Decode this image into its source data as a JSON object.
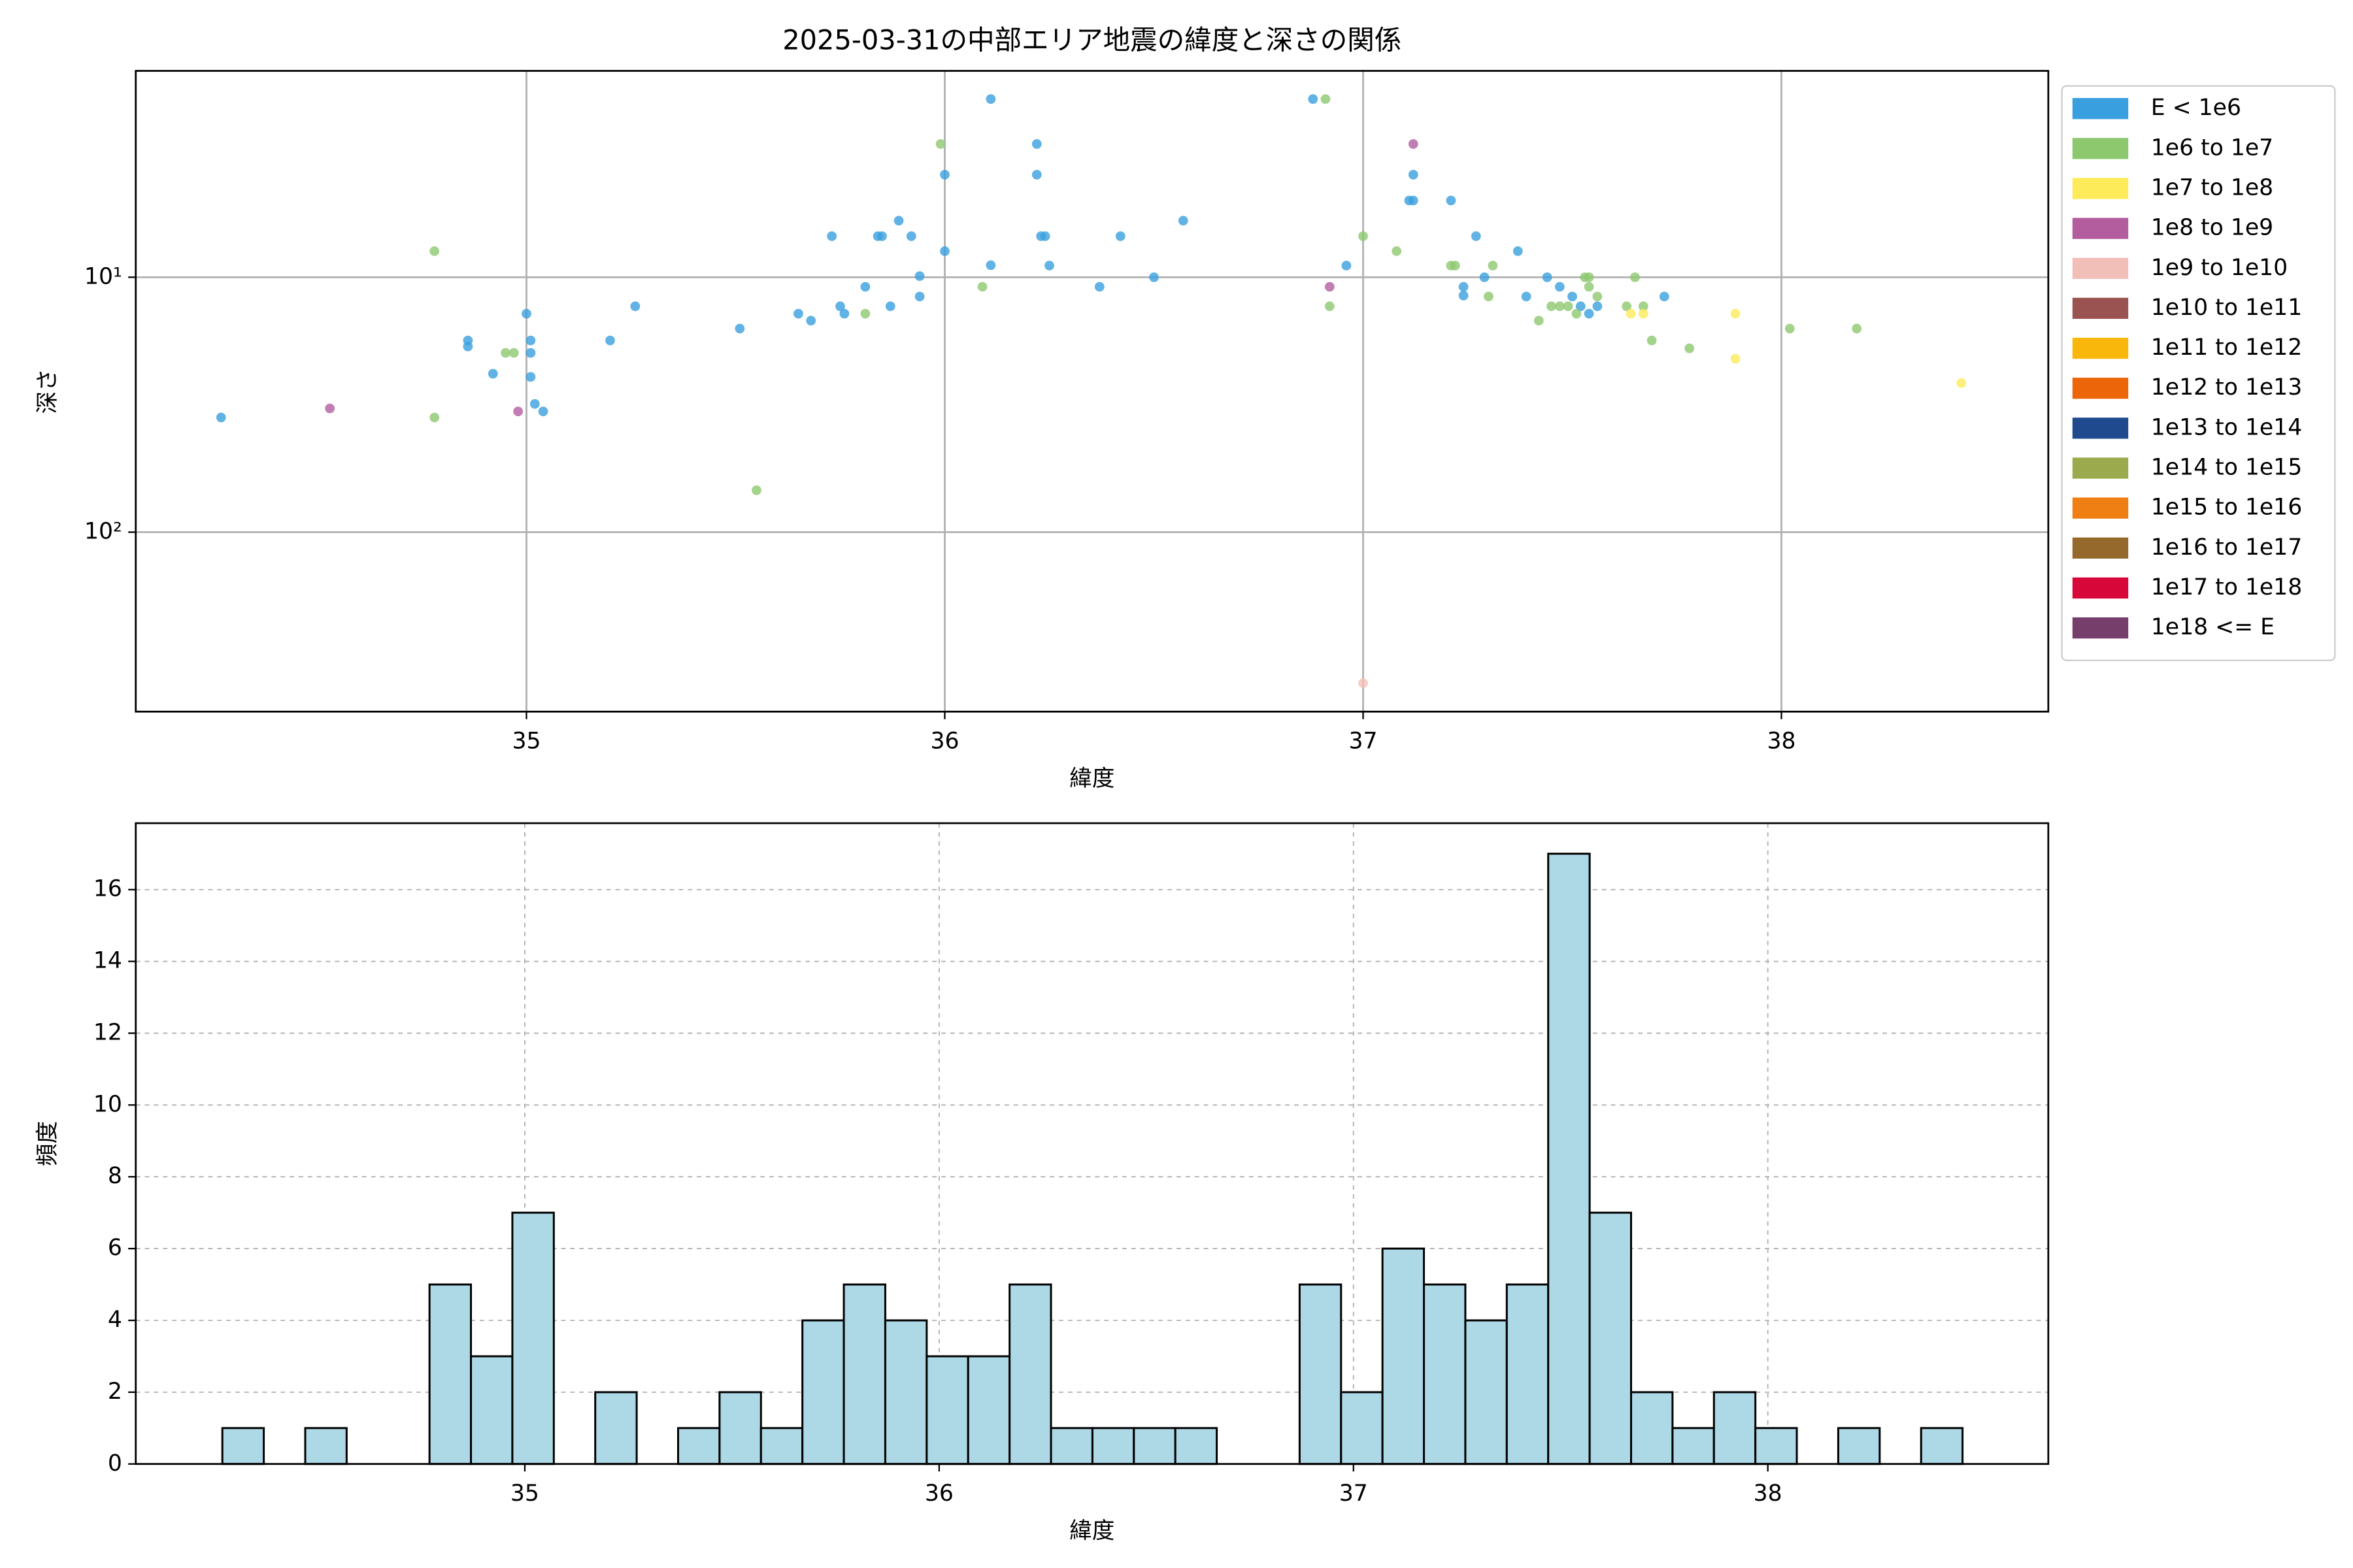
{
  "chart_data": [
    {
      "type": "scatter",
      "title": "2025-03-31の中部エリア地震の緯度と深さの関係",
      "x_label": "緯度",
      "y_label": "深さ",
      "xlim": [
        34.066,
        38.638
      ],
      "xticks": [
        35,
        36,
        37,
        38
      ],
      "ylim": [
        506,
        1.55
      ],
      "y_log": true,
      "yticks": [
        {
          "value": 10,
          "label": "10¹"
        },
        {
          "value": 100,
          "label": "10²"
        }
      ],
      "grid": true,
      "legend": "outside-right",
      "series": [
        {
          "name": "E < 1e6",
          "color": "#3a9fdf",
          "x": [
            34.27,
            34.86,
            34.86,
            34.92,
            35.0,
            35.01,
            35.01,
            35.01,
            35.02,
            35.04,
            35.2,
            35.26,
            35.51,
            35.65,
            35.68,
            35.75,
            35.76,
            35.73,
            35.81,
            35.84,
            35.85,
            35.87,
            35.89,
            35.92,
            35.94,
            35.94,
            36.0,
            36.0,
            36.11,
            36.11,
            36.22,
            36.22,
            36.23,
            36.24,
            36.25,
            36.37,
            36.42,
            36.5,
            36.57,
            36.88,
            36.96,
            37.11,
            37.12,
            37.12,
            37.21,
            37.24,
            37.24,
            37.27,
            37.29,
            37.37,
            37.39,
            37.44,
            37.47,
            37.5,
            37.52,
            37.54,
            37.56,
            37.72
          ],
          "values": [
            35.5,
            17.7,
            18.7,
            23.9,
            13.9,
            17.7,
            19.8,
            24.6,
            31.4,
            33.6,
            17.7,
            13.0,
            15.9,
            13.9,
            14.8,
            13.0,
            13.9,
            6.9,
            10.9,
            6.9,
            6.9,
            13.0,
            6.0,
            6.9,
            9.9,
            11.9,
            7.9,
            3.96,
            2.0,
            8.97,
            3.0,
            3.96,
            6.9,
            6.9,
            9.0,
            10.9,
            6.9,
            10,
            6.0,
            2.0,
            9.0,
            5.0,
            5.0,
            3.96,
            5.0,
            10.9,
            11.8,
            6.9,
            10,
            7.9,
            11.9,
            10,
            10.9,
            11.9,
            13.0,
            13.9,
            13.0,
            11.9
          ]
        },
        {
          "name": "1e6 to 1e7",
          "color": "#8dc86f",
          "x": [
            34.78,
            34.78,
            34.95,
            34.97,
            35.55,
            35.81,
            35.99,
            36.09,
            36.91,
            36.92,
            37.0,
            37.08,
            37.21,
            37.22,
            37.3,
            37.31,
            37.42,
            37.45,
            37.47,
            37.49,
            37.51,
            37.53,
            37.54,
            37.54,
            37.56,
            37.63,
            37.65,
            37.67,
            37.69,
            37.78,
            38.02,
            38.18
          ],
          "values": [
            7.9,
            35.5,
            19.8,
            19.8,
            68.5,
            13.9,
            3.0,
            10.9,
            2.0,
            13.0,
            6.9,
            7.9,
            9.0,
            9.0,
            11.9,
            9.0,
            14.8,
            13.0,
            13.0,
            13.0,
            13.9,
            10,
            10,
            10.9,
            11.9,
            13.0,
            10,
            13,
            17.7,
            19.0,
            15.9,
            15.9
          ]
        },
        {
          "name": "1e7 to 1e8",
          "color": "#fdeb5a",
          "x": [
            37.64,
            37.67,
            37.89,
            37.89,
            38.43
          ],
          "values": [
            13.9,
            13.9,
            13.9,
            20.9,
            26
          ]
        },
        {
          "name": "1e8 to 1e9",
          "color": "#b35d9f",
          "x": [
            34.53,
            34.98,
            36.92,
            37.12
          ],
          "values": [
            32.7,
            33.6,
            10.9,
            3.0
          ]
        },
        {
          "name": "1e9 to 1e10",
          "color": "#f2bfb8",
          "x": [
            37.0
          ],
          "values": [
            391
          ]
        },
        {
          "name": "1e10 to 1e11",
          "color": "#9a5350",
          "x": [],
          "values": []
        },
        {
          "name": "1e11 to 1e12",
          "color": "#f9b70b",
          "x": [],
          "values": []
        },
        {
          "name": "1e12 to 1e13",
          "color": "#ec6509",
          "x": [],
          "values": []
        },
        {
          "name": "1e13 to 1e14",
          "color": "#1f4a8d",
          "x": [],
          "values": []
        },
        {
          "name": "1e14 to 1e15",
          "color": "#9baa4d",
          "x": [],
          "values": []
        },
        {
          "name": "1e15 to 1e16",
          "color": "#ef7e13",
          "x": [],
          "values": []
        },
        {
          "name": "1e16 to 1e17",
          "color": "#95692c",
          "x": [],
          "values": []
        },
        {
          "name": "1e17 to 1e18",
          "color": "#d7073a",
          "x": [],
          "values": []
        },
        {
          "name": "1e18 <= E",
          "color": "#753e6b",
          "x": [],
          "values": []
        }
      ]
    },
    {
      "type": "histogram",
      "x_label": "緯度",
      "y_label": "頻度",
      "xlim": [
        34.061,
        38.677
      ],
      "xticks": [
        35,
        36,
        37,
        38
      ],
      "ylim": [
        0,
        17.85
      ],
      "yticks": [
        0,
        2,
        4,
        6,
        8,
        10,
        12,
        14,
        16
      ],
      "grid": true,
      "color": "#add8e6",
      "edgecolor": "#000000",
      "bins": [
        34.27,
        34.37,
        34.47,
        34.57,
        34.67,
        34.77,
        34.87,
        34.97,
        35.07,
        35.17,
        35.27,
        35.37,
        35.47,
        35.57,
        35.67,
        35.77,
        35.87,
        35.97,
        36.07,
        36.17,
        36.27,
        36.37,
        36.47,
        36.57,
        36.67,
        36.77,
        36.87,
        36.97,
        37.07,
        37.17,
        37.27,
        37.37,
        37.47,
        37.57,
        37.67,
        37.77,
        37.87,
        37.97,
        38.07,
        38.17,
        38.27,
        38.37,
        38.47
      ],
      "values": [
        1,
        0,
        1,
        0,
        0,
        5,
        3,
        7,
        0,
        2,
        0,
        1,
        2,
        1,
        4,
        5,
        4,
        3,
        3,
        5,
        1,
        1,
        1,
        1,
        0,
        0,
        5,
        2,
        6,
        5,
        4,
        5,
        17,
        7,
        2,
        1,
        2,
        1,
        0,
        1,
        0,
        1
      ]
    }
  ]
}
